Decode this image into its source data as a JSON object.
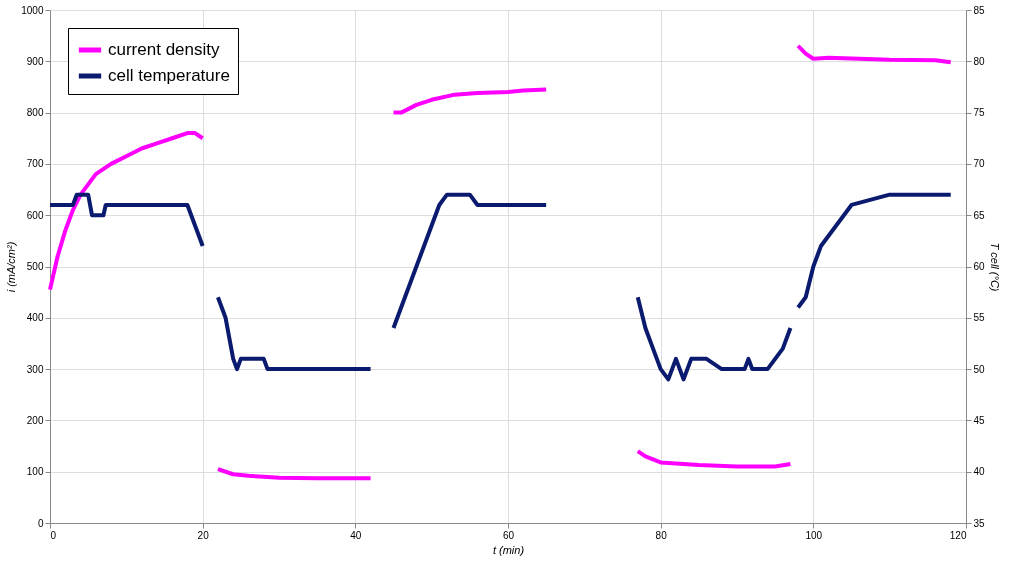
{
  "chart_data": {
    "type": "line",
    "xlabel": "t (min)",
    "ylabel": "i (mA/cm²)",
    "y2label": "T cell (°C)",
    "xlim": [
      0,
      120
    ],
    "xticks": [
      0,
      20,
      40,
      60,
      80,
      100,
      120
    ],
    "ylim": [
      0,
      1000
    ],
    "yticks": [
      0,
      100,
      200,
      300,
      400,
      500,
      600,
      700,
      800,
      900,
      1000
    ],
    "y2lim": [
      35,
      85
    ],
    "y2ticks": [
      35,
      40,
      45,
      50,
      55,
      60,
      65,
      70,
      75,
      80,
      85
    ],
    "grid": true,
    "legend": "top left",
    "line_style": "solid",
    "marker": "none",
    "series": [
      {
        "name": "current density",
        "color": "#ff00ff",
        "x": [
          0,
          1,
          2,
          3,
          4,
          5,
          6,
          8,
          10,
          12,
          14,
          16,
          18,
          19,
          20,
          null,
          22,
          24,
          26,
          28,
          30,
          35,
          42,
          null,
          45,
          46,
          48,
          50,
          53,
          56,
          60,
          62,
          65,
          null,
          77,
          78,
          80,
          85,
          90,
          95,
          97,
          null,
          98,
          99,
          100,
          102,
          110,
          116,
          118
        ],
        "values": [
          455,
          520,
          570,
          610,
          640,
          660,
          680,
          700,
          715,
          730,
          740,
          750,
          760,
          760,
          750,
          null,
          105,
          95,
          92,
          90,
          88,
          87,
          87,
          null,
          800,
          800,
          815,
          825,
          835,
          838,
          840,
          843,
          845,
          null,
          140,
          130,
          118,
          113,
          110,
          110,
          115,
          null,
          930,
          915,
          905,
          907,
          903,
          902,
          898
        ]
      },
      {
        "name": "cell temperature",
        "color": "#0a1a6e",
        "axis": "y2",
        "x": [
          0,
          3,
          3.5,
          5,
          5.5,
          7,
          7.3,
          18,
          19,
          20,
          null,
          22,
          23,
          23.5,
          24,
          24.5,
          25,
          28,
          28.5,
          42,
          null,
          45,
          46,
          47,
          48,
          49,
          50,
          51,
          52,
          55,
          56,
          65,
          null,
          77,
          78,
          79,
          80,
          81,
          82,
          83,
          84,
          86,
          88,
          91,
          91.5,
          92,
          94,
          95,
          96,
          97,
          null,
          98,
          99,
          100,
          101,
          102,
          103,
          105,
          110,
          118
        ],
        "values": [
          66,
          66,
          67,
          67,
          65,
          65,
          66,
          66,
          64,
          62,
          null,
          57,
          55,
          53,
          51,
          50,
          51,
          51,
          50,
          50,
          null,
          54,
          56,
          58,
          60,
          62,
          64,
          66,
          67,
          67,
          66,
          66,
          null,
          57,
          54,
          52,
          50,
          49,
          51,
          49,
          51,
          51,
          50,
          50,
          51,
          50,
          50,
          51,
          52,
          54,
          null,
          56,
          57,
          60,
          62,
          63,
          64,
          66,
          67,
          67
        ]
      }
    ]
  }
}
